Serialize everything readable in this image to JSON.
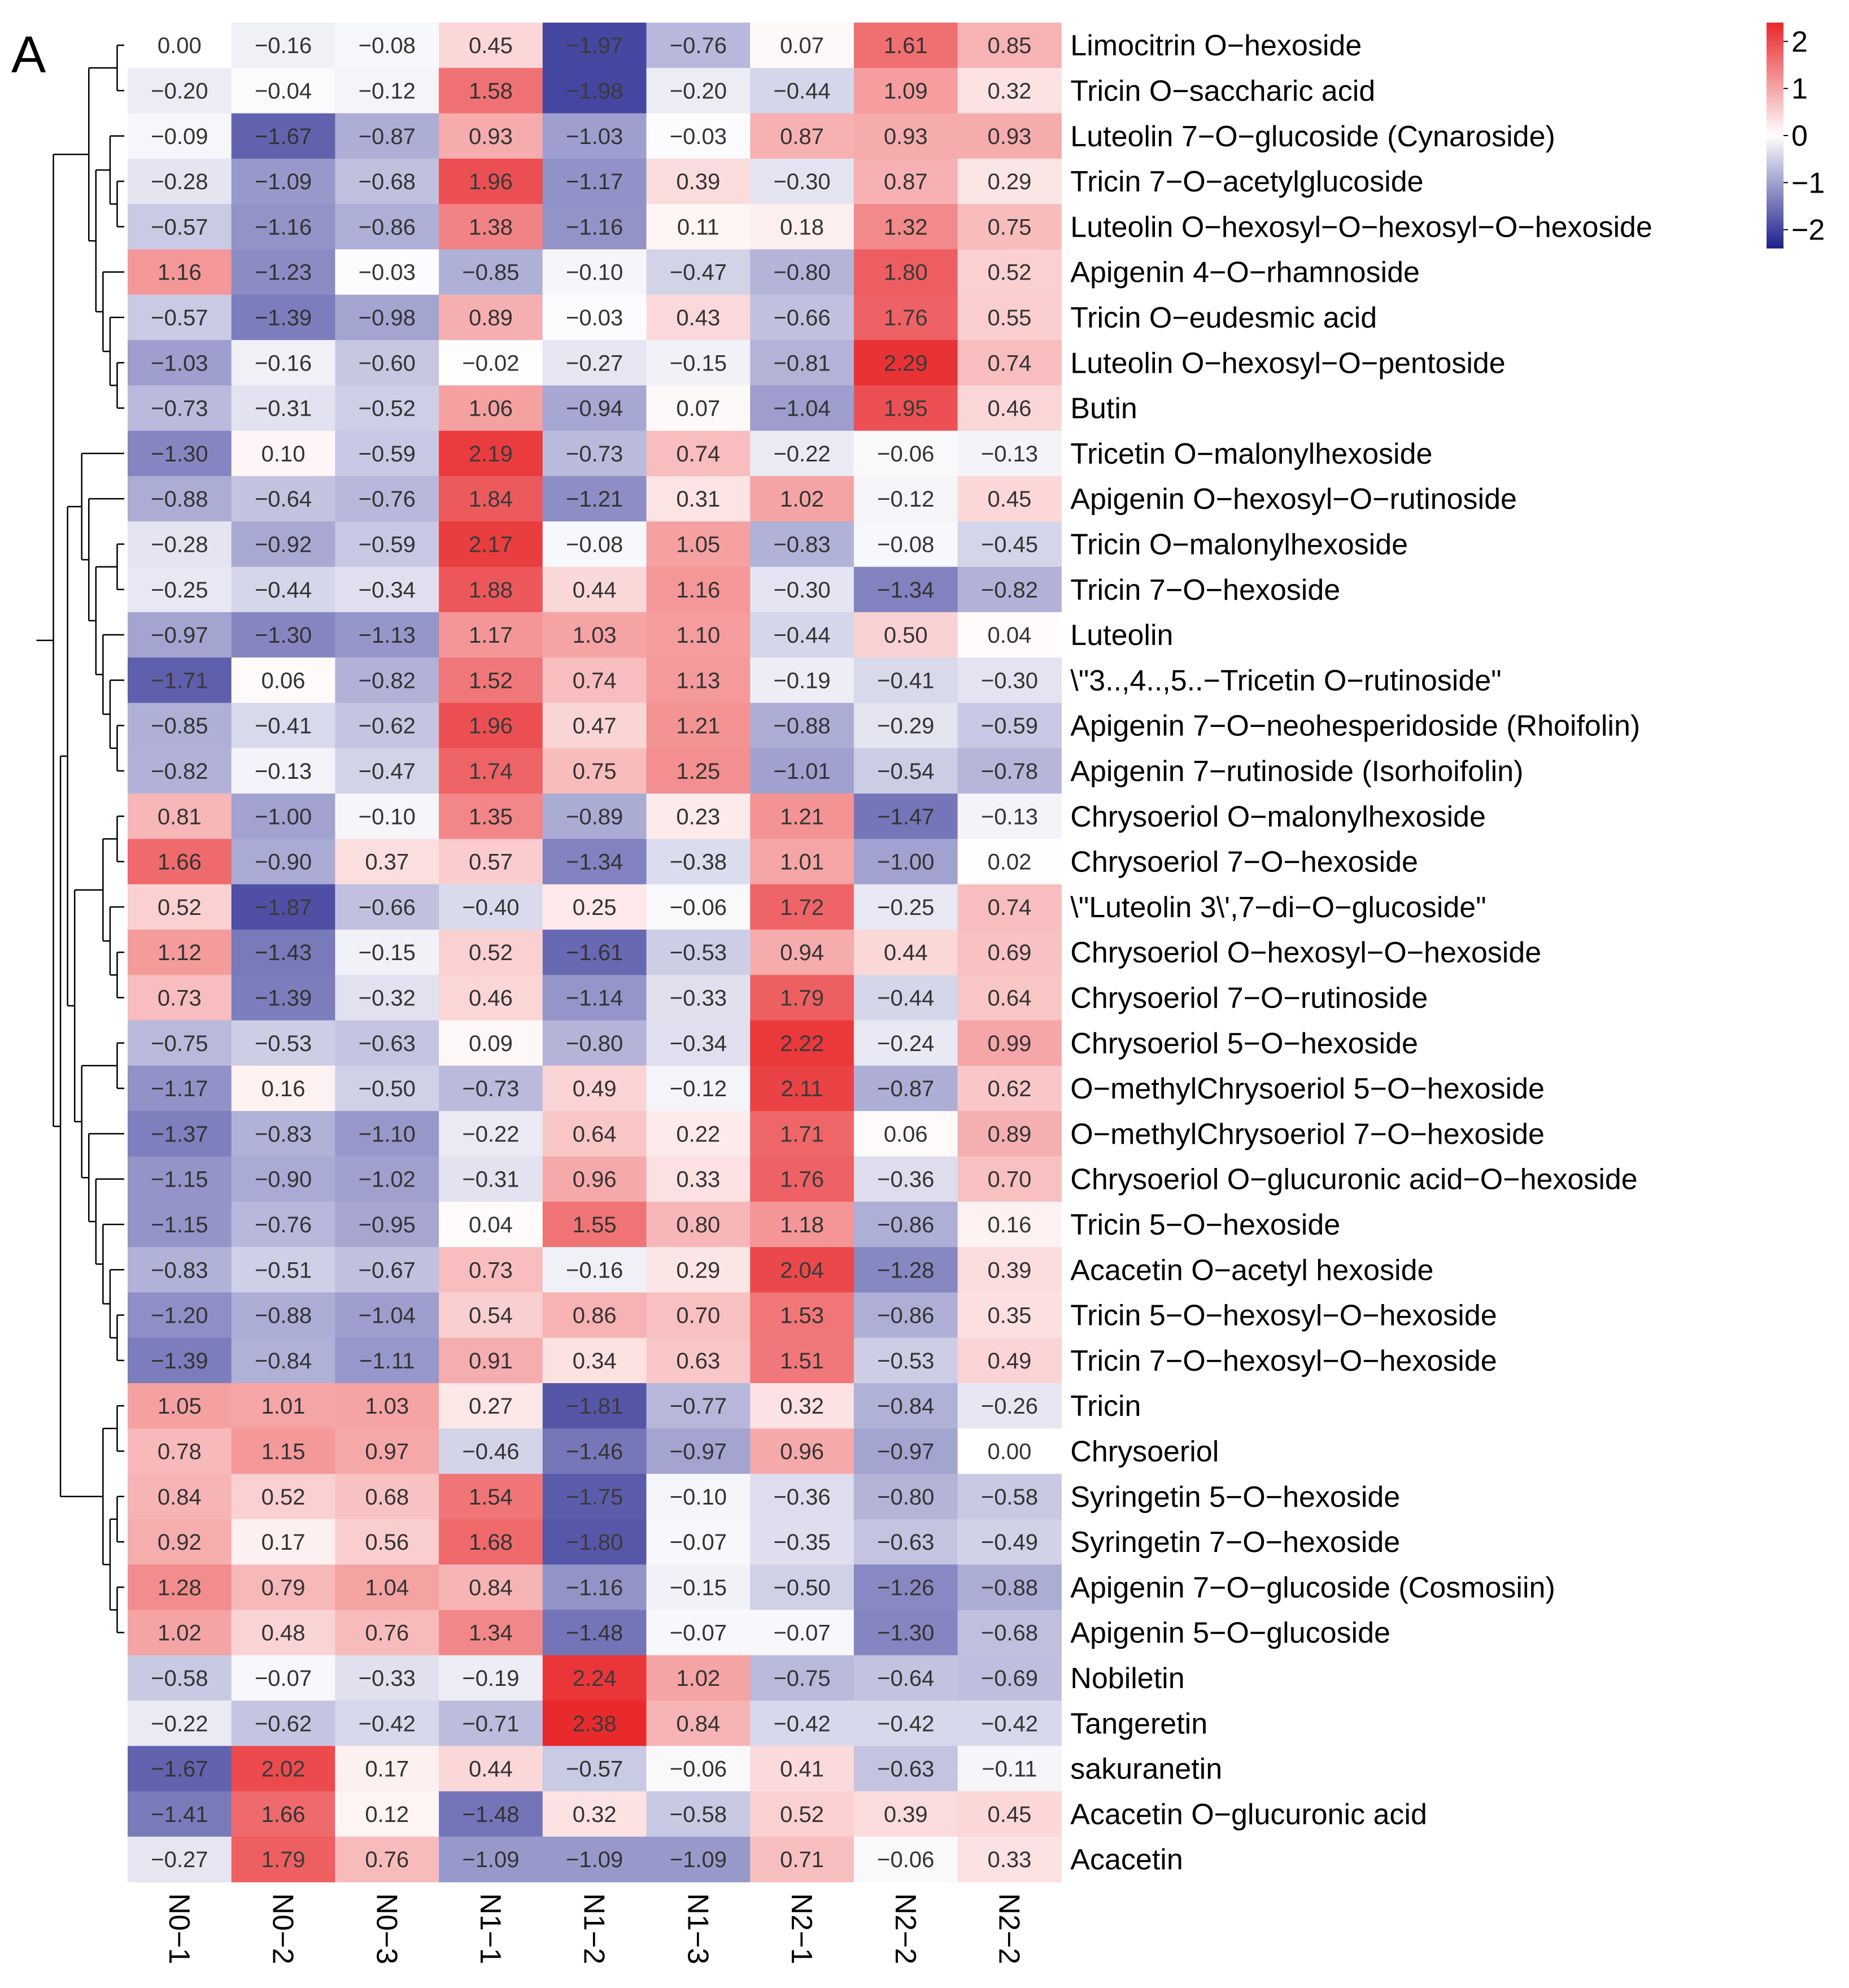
{
  "chart_data": {
    "type": "heatmap",
    "panel_label": "A",
    "columns": [
      "N0−1",
      "N0−2",
      "N0−3",
      "N1−1",
      "N1−2",
      "N1−3",
      "N2−1",
      "N2−2",
      "N2−2"
    ],
    "rows": [
      "Limocitrin O−hexoside",
      "Tricin O−saccharic acid",
      "Luteolin 7−O−glucoside (Cynaroside)",
      "Tricin 7−O−acetylglucoside",
      "Luteolin O−hexosyl−O−hexosyl−O−hexoside",
      "Apigenin 4−O−rhamnoside",
      "Tricin O−eudesmic acid",
      "Luteolin O−hexosyl−O−pentoside",
      "Butin",
      "Tricetin O−malonylhexoside",
      "Apigenin O−hexosyl−O−rutinoside",
      "Tricin O−malonylhexoside",
      "Tricin 7−O−hexoside",
      "Luteolin",
      "\\\"3..,4..,5..−Tricetin O−rutinoside\"",
      "Apigenin 7−O−neohesperidoside (Rhoifolin)",
      "Apigenin 7−rutinoside (Isorhoifolin)",
      "Chrysoeriol O−malonylhexoside",
      "Chrysoeriol 7−O−hexoside",
      "\\\"Luteolin 3\\',7−di−O−glucoside\"",
      "Chrysoeriol O−hexosyl−O−hexoside",
      "Chrysoeriol 7−O−rutinoside",
      "Chrysoeriol 5−O−hexoside",
      "O−methylChrysoeriol 5−O−hexoside",
      "O−methylChrysoeriol 7−O−hexoside",
      "Chrysoeriol O−glucuronic acid−O−hexoside",
      "Tricin 5−O−hexoside",
      "Acacetin O−acetyl hexoside",
      "Tricin 5−O−hexosyl−O−hexoside",
      "Tricin 7−O−hexosyl−O−hexoside",
      "Tricin",
      "Chrysoeriol",
      "Syringetin 5−O−hexoside",
      "Syringetin 7−O−hexoside",
      "Apigenin 7−O−glucoside (Cosmosiin)",
      "Apigenin 5−O−glucoside",
      "Nobiletin",
      "Tangeretin",
      "sakuranetin",
      "Acacetin O−glucuronic acid",
      "Acacetin"
    ],
    "values": [
      [
        0.0,
        -0.16,
        -0.08,
        0.45,
        -1.97,
        -0.76,
        0.07,
        1.61,
        0.85
      ],
      [
        -0.2,
        -0.04,
        -0.12,
        1.58,
        -1.98,
        -0.2,
        -0.44,
        1.09,
        0.32
      ],
      [
        -0.09,
        -1.67,
        -0.87,
        0.93,
        -1.03,
        -0.03,
        0.87,
        0.93,
        0.93
      ],
      [
        -0.28,
        -1.09,
        -0.68,
        1.96,
        -1.17,
        0.39,
        -0.3,
        0.87,
        0.29
      ],
      [
        -0.57,
        -1.16,
        -0.86,
        1.38,
        -1.16,
        0.11,
        0.18,
        1.32,
        0.75
      ],
      [
        1.16,
        -1.23,
        -0.03,
        -0.85,
        -0.1,
        -0.47,
        -0.8,
        1.8,
        0.52
      ],
      [
        -0.57,
        -1.39,
        -0.98,
        0.89,
        -0.03,
        0.43,
        -0.66,
        1.76,
        0.55
      ],
      [
        -1.03,
        -0.16,
        -0.6,
        -0.02,
        -0.27,
        -0.15,
        -0.81,
        2.29,
        0.74
      ],
      [
        -0.73,
        -0.31,
        -0.52,
        1.06,
        -0.94,
        0.07,
        -1.04,
        1.95,
        0.46
      ],
      [
        -1.3,
        0.1,
        -0.59,
        2.19,
        -0.73,
        0.74,
        -0.22,
        -0.06,
        -0.13
      ],
      [
        -0.88,
        -0.64,
        -0.76,
        1.84,
        -1.21,
        0.31,
        1.02,
        -0.12,
        0.45
      ],
      [
        -0.28,
        -0.92,
        -0.59,
        2.17,
        -0.08,
        1.05,
        -0.83,
        -0.08,
        -0.45
      ],
      [
        -0.25,
        -0.44,
        -0.34,
        1.88,
        0.44,
        1.16,
        -0.3,
        -1.34,
        -0.82
      ],
      [
        -0.97,
        -1.3,
        -1.13,
        1.17,
        1.03,
        1.1,
        -0.44,
        0.5,
        0.04
      ],
      [
        -1.71,
        0.06,
        -0.82,
        1.52,
        0.74,
        1.13,
        -0.19,
        -0.41,
        -0.3
      ],
      [
        -0.85,
        -0.41,
        -0.62,
        1.96,
        0.47,
        1.21,
        -0.88,
        -0.29,
        -0.59
      ],
      [
        -0.82,
        -0.13,
        -0.47,
        1.74,
        0.75,
        1.25,
        -1.01,
        -0.54,
        -0.78
      ],
      [
        0.81,
        -1.0,
        -0.1,
        1.35,
        -0.89,
        0.23,
        1.21,
        -1.47,
        -0.13
      ],
      [
        1.66,
        -0.9,
        0.37,
        0.57,
        -1.34,
        -0.38,
        1.01,
        -1.0,
        0.02
      ],
      [
        0.52,
        -1.87,
        -0.66,
        -0.4,
        0.25,
        -0.06,
        1.72,
        -0.25,
        0.74
      ],
      [
        1.12,
        -1.43,
        -0.15,
        0.52,
        -1.61,
        -0.53,
        0.94,
        0.44,
        0.69
      ],
      [
        0.73,
        -1.39,
        -0.32,
        0.46,
        -1.14,
        -0.33,
        1.79,
        -0.44,
        0.64
      ],
      [
        -0.75,
        -0.53,
        -0.63,
        0.09,
        -0.8,
        -0.34,
        2.22,
        -0.24,
        0.99
      ],
      [
        -1.17,
        0.16,
        -0.5,
        -0.73,
        0.49,
        -0.12,
        2.11,
        -0.87,
        0.62
      ],
      [
        -1.37,
        -0.83,
        -1.1,
        -0.22,
        0.64,
        0.22,
        1.71,
        0.06,
        0.89
      ],
      [
        -1.15,
        -0.9,
        -1.02,
        -0.31,
        0.96,
        0.33,
        1.76,
        -0.36,
        0.7
      ],
      [
        -1.15,
        -0.76,
        -0.95,
        0.04,
        1.55,
        0.8,
        1.18,
        -0.86,
        0.16
      ],
      [
        -0.83,
        -0.51,
        -0.67,
        0.73,
        -0.16,
        0.29,
        2.04,
        -1.28,
        0.39
      ],
      [
        -1.2,
        -0.88,
        -1.04,
        0.54,
        0.86,
        0.7,
        1.53,
        -0.86,
        0.35
      ],
      [
        -1.39,
        -0.84,
        -1.11,
        0.91,
        0.34,
        0.63,
        1.51,
        -0.53,
        0.49
      ],
      [
        1.05,
        1.01,
        1.03,
        0.27,
        -1.81,
        -0.77,
        0.32,
        -0.84,
        -0.26
      ],
      [
        0.78,
        1.15,
        0.97,
        -0.46,
        -1.46,
        -0.97,
        0.96,
        -0.97,
        0.0
      ],
      [
        0.84,
        0.52,
        0.68,
        1.54,
        -1.75,
        -0.1,
        -0.36,
        -0.8,
        -0.58
      ],
      [
        0.92,
        0.17,
        0.56,
        1.68,
        -1.8,
        -0.07,
        -0.35,
        -0.63,
        -0.49
      ],
      [
        1.28,
        0.79,
        1.04,
        0.84,
        -1.16,
        -0.15,
        -0.5,
        -1.26,
        -0.88
      ],
      [
        1.02,
        0.48,
        0.76,
        1.34,
        -1.48,
        -0.07,
        -0.07,
        -1.3,
        -0.68
      ],
      [
        -0.58,
        -0.07,
        -0.33,
        -0.19,
        2.24,
        1.02,
        -0.75,
        -0.64,
        -0.69
      ],
      [
        -0.22,
        -0.62,
        -0.42,
        -0.71,
        2.38,
        0.84,
        -0.42,
        -0.42,
        -0.42
      ],
      [
        -1.67,
        2.02,
        0.17,
        0.44,
        -0.57,
        -0.06,
        0.41,
        -0.63,
        -0.11
      ],
      [
        -1.41,
        1.66,
        0.12,
        -1.48,
        0.32,
        -0.58,
        0.52,
        0.39,
        0.45
      ],
      [
        -0.27,
        1.79,
        0.76,
        -1.09,
        -1.09,
        -1.09,
        0.71,
        -0.06,
        0.33
      ]
    ],
    "value_range": [
      -2.4,
      2.4
    ],
    "legend": {
      "ticks": [
        2,
        1,
        0,
        -1,
        -2
      ],
      "tick_labels": [
        "2",
        "1",
        "0",
        "−1",
        "−2"
      ],
      "colors": {
        "high": "#e8282b",
        "mid": "#ffffff",
        "low": "#1d1f8c"
      },
      "placement": "top-right"
    },
    "dendrogram": {
      "tree": [
        [
          [
            [
              0,
              1
            ],
            [
              [
                2,
                [
                  3,
                  4
                ]
              ],
              [
                5,
                [
                  6,
                  [
                    7,
                    8
                  ]
                ]
              ]
            ]
          ],
          [
            [
              [
                9,
                [
                  10,
                  [
                    [
                      11,
                      12
                    ],
                    [
                      13,
                      [
                        14,
                        [
                          15,
                          16
                        ]
                      ]
                    ]
                  ]
                ]
              ],
              [
                [
                  [
                    17,
                    18
                  ],
                  [
                    19,
                    [
                      20,
                      21
                    ]
                  ]
                ],
                [
                  [
                    22,
                    23
                  ],
                  [
                    24,
                    [
                      25,
                      [
                        26,
                        [
                          27,
                          [
                            28,
                            29
                          ]
                        ]
                      ]
                    ]
                  ]
                ]
              ]
            ],
            [
              [
                30,
                31
              ],
              [
                [
                  32,
                  33
                ],
                [
                  34,
                  35
                ]
              ]
            ]
          ]
        ],
        [
          [
            36,
            37
          ],
          [
            38,
            [
              39,
              40
            ]
          ]
        ]
      ]
    }
  }
}
